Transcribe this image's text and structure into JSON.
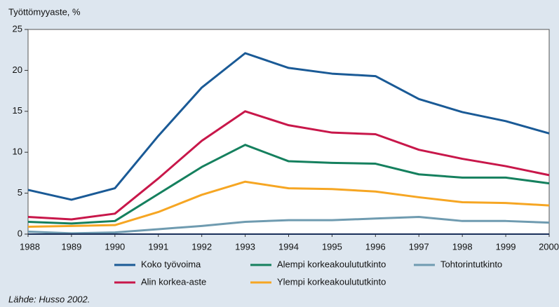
{
  "chart_data": {
    "type": "line",
    "y_label": "Työttömyyaste, %",
    "source": "Lähde: Husso 2002.",
    "x": [
      1988,
      1989,
      1990,
      1991,
      1992,
      1993,
      1994,
      1995,
      1996,
      1997,
      1998,
      1999,
      2000
    ],
    "xlim": [
      1988,
      2000
    ],
    "ylim": [
      0,
      25
    ],
    "yticks": [
      0,
      5,
      10,
      15,
      20,
      25
    ],
    "grid": false,
    "series": [
      {
        "name": "Koko työvoima",
        "color": "#1a5a96",
        "values": [
          5.4,
          4.2,
          5.6,
          12.0,
          17.9,
          22.1,
          20.3,
          19.6,
          19.3,
          16.5,
          14.9,
          13.8,
          12.3
        ]
      },
      {
        "name": "Alin korkea-aste",
        "color": "#c8174a",
        "values": [
          2.1,
          1.8,
          2.5,
          6.8,
          11.4,
          15.0,
          13.3,
          12.4,
          12.2,
          10.3,
          9.2,
          8.3,
          7.2
        ]
      },
      {
        "name": "Alempi korkeakoulututkinto",
        "color": "#15805e",
        "values": [
          1.5,
          1.3,
          1.6,
          4.9,
          8.2,
          10.9,
          8.9,
          8.7,
          8.6,
          7.3,
          6.9,
          6.9,
          6.2
        ]
      },
      {
        "name": "Ylempi korkeakoulututkinto",
        "color": "#f6a623",
        "values": [
          0.9,
          1.0,
          1.1,
          2.7,
          4.8,
          6.4,
          5.6,
          5.5,
          5.2,
          4.5,
          3.9,
          3.8,
          3.5
        ]
      },
      {
        "name": "Tohtorintutkinto",
        "color": "#6f9bb0",
        "values": [
          0.3,
          0.1,
          0.2,
          0.6,
          1.0,
          1.5,
          1.7,
          1.7,
          1.9,
          2.1,
          1.6,
          1.6,
          1.4
        ]
      }
    ]
  }
}
